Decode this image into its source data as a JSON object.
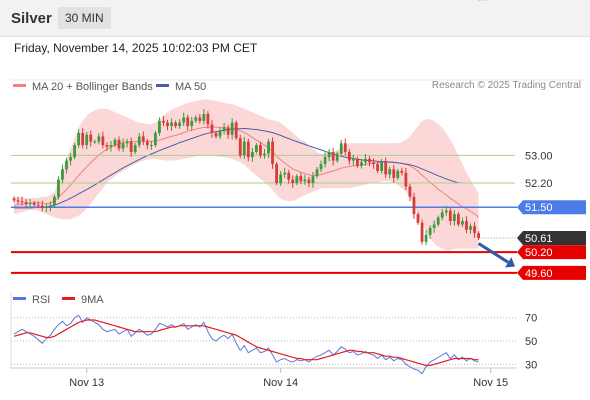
{
  "header": {
    "title": "Silver",
    "timeframe": "30 MIN"
  },
  "datetime": "Friday, November 14, 2025 10:02:03 PM CET",
  "copyright": "Research © 2025 Trading Central",
  "colors": {
    "up": "#3d9a3d",
    "down": "#d93a3a",
    "bollinger_fill": "#f9c9c9",
    "ma20": "#f08080",
    "ma50": "#4a5fa8",
    "support": "#e60000",
    "pivot": "#4d7be8",
    "resistance": "#a8d08d",
    "last_price": "#333333",
    "rsi": "#5a78d6",
    "rsi_ma": "#e02020",
    "forecast_arrow": "#2f5aa8"
  },
  "chart_data": [
    {
      "type": "candlestick",
      "legend": [
        {
          "name": "MA 20 + Bollinger Bands",
          "color": "#f08080"
        },
        {
          "name": "MA 50",
          "color": "#4a5fa8"
        }
      ],
      "ylim": [
        49.45,
        54.75
      ],
      "x_ticks": [
        {
          "label": "Nov 13",
          "bar": 18
        },
        {
          "label": "Nov 14",
          "bar": 66
        },
        {
          "label": "Nov 15",
          "bar": 118
        }
      ],
      "levels": [
        {
          "label": "53.00",
          "value": 53.0,
          "kind": "resistance"
        },
        {
          "label": "52.20",
          "value": 52.2,
          "kind": "resistance"
        },
        {
          "label": "51.50",
          "value": 51.5,
          "kind": "pivot"
        },
        {
          "label": "50.61",
          "value": 50.61,
          "kind": "last"
        },
        {
          "label": "50.20",
          "value": 50.2,
          "kind": "support"
        },
        {
          "label": "49.60",
          "value": 49.6,
          "kind": "support"
        }
      ],
      "close": [
        51.7,
        51.67,
        51.65,
        51.6,
        51.62,
        51.57,
        51.55,
        51.48,
        51.52,
        51.55,
        51.8,
        52.3,
        52.6,
        52.85,
        52.95,
        53.3,
        53.65,
        53.3,
        53.6,
        53.4,
        53.4,
        53.55,
        53.3,
        53.25,
        53.3,
        53.45,
        53.2,
        53.35,
        53.4,
        53.1,
        53.3,
        53.55,
        53.4,
        53.3,
        53.3,
        53.65,
        54.0,
        53.95,
        53.85,
        53.95,
        53.85,
        53.95,
        54.1,
        53.85,
        54.0,
        54.1,
        54.0,
        54.2,
        53.9,
        53.65,
        53.55,
        53.7,
        53.8,
        53.6,
        53.95,
        53.5,
        53.0,
        53.4,
        52.95,
        53.1,
        53.3,
        53.0,
        53.05,
        53.4,
        52.75,
        52.2,
        52.45,
        52.5,
        52.3,
        52.2,
        52.4,
        52.25,
        52.3,
        52.2,
        52.4,
        52.6,
        52.75,
        52.95,
        53.1,
        52.85,
        53.05,
        53.35,
        53.1,
        52.85,
        52.9,
        52.7,
        52.8,
        52.9,
        52.8,
        52.75,
        52.55,
        52.8,
        52.45,
        52.6,
        52.35,
        52.55,
        52.5,
        52.1,
        51.8,
        51.3,
        51.05,
        50.5,
        50.7,
        50.9,
        51.0,
        51.2,
        51.35,
        51.4,
        51.1,
        51.3,
        51.0,
        51.1,
        50.85,
        50.95,
        50.75,
        50.61
      ],
      "ma20": [
        51.55,
        51.57,
        51.59,
        51.6,
        51.62,
        51.63,
        51.63,
        51.62,
        51.6,
        51.62,
        51.68,
        51.78,
        51.9,
        52.02,
        52.14,
        52.28,
        52.42,
        52.55,
        52.67,
        52.79,
        52.9,
        53.01,
        53.1,
        53.18,
        53.24,
        53.29,
        53.33,
        53.37,
        53.4,
        53.4,
        53.4,
        53.41,
        53.41,
        53.41,
        53.41,
        53.42,
        53.44,
        53.48,
        53.52,
        53.55,
        53.58,
        53.62,
        53.66,
        53.7,
        53.73,
        53.76,
        53.79,
        53.81,
        53.82,
        53.82,
        53.82,
        53.81,
        53.81,
        53.8,
        53.79,
        53.76,
        53.71,
        53.67,
        53.6,
        53.52,
        53.44,
        53.37,
        53.3,
        53.22,
        53.12,
        52.98,
        52.87,
        52.78,
        52.69,
        52.61,
        52.56,
        52.51,
        52.48,
        52.44,
        52.42,
        52.43,
        52.45,
        52.48,
        52.52,
        52.55,
        52.59,
        52.63,
        52.66,
        52.68,
        52.7,
        52.71,
        52.72,
        52.74,
        52.76,
        52.78,
        52.79,
        52.8,
        52.8,
        52.8,
        52.79,
        52.79,
        52.77,
        52.74,
        52.7,
        52.63,
        52.54,
        52.43,
        52.33,
        52.22,
        52.12,
        52.02,
        51.94,
        51.85,
        51.76,
        51.68,
        51.6,
        51.52,
        51.45,
        51.38,
        51.31,
        51.2
      ],
      "bb_upper": [
        51.8,
        51.8,
        51.78,
        51.76,
        51.76,
        51.76,
        51.77,
        51.8,
        51.8,
        51.85,
        51.95,
        52.2,
        52.55,
        52.9,
        53.2,
        53.5,
        53.8,
        54.0,
        54.15,
        54.25,
        54.3,
        54.35,
        54.35,
        54.35,
        54.3,
        54.25,
        54.2,
        54.15,
        54.1,
        54.05,
        54.0,
        53.95,
        53.93,
        53.9,
        53.9,
        53.95,
        54.05,
        54.15,
        54.25,
        54.32,
        54.38,
        54.42,
        54.48,
        54.52,
        54.55,
        54.58,
        54.6,
        54.62,
        54.62,
        54.6,
        54.58,
        54.55,
        54.52,
        54.5,
        54.48,
        54.45,
        54.4,
        54.35,
        54.3,
        54.25,
        54.2,
        54.15,
        54.1,
        54.05,
        54.02,
        54.0,
        53.95,
        53.85,
        53.75,
        53.65,
        53.55,
        53.45,
        53.4,
        53.3,
        53.2,
        53.1,
        53.05,
        53.05,
        53.08,
        53.1,
        53.15,
        53.25,
        53.3,
        53.35,
        53.35,
        53.35,
        53.35,
        53.35,
        53.35,
        53.35,
        53.35,
        53.35,
        53.35,
        53.35,
        53.35,
        53.35,
        53.4,
        53.45,
        53.55,
        53.7,
        53.85,
        54.0,
        54.05,
        54.05,
        54.0,
        53.9,
        53.8,
        53.65,
        53.45,
        53.25,
        53.0,
        52.75,
        52.5,
        52.3,
        52.1,
        51.9
      ],
      "bb_lower": [
        51.3,
        51.32,
        51.36,
        51.4,
        51.42,
        51.42,
        51.4,
        51.36,
        51.3,
        51.25,
        51.2,
        51.18,
        51.15,
        51.15,
        51.16,
        51.2,
        51.25,
        51.35,
        51.45,
        51.6,
        51.75,
        51.9,
        52.05,
        52.2,
        52.3,
        52.4,
        52.48,
        52.55,
        52.62,
        52.7,
        52.75,
        52.8,
        52.85,
        52.88,
        52.9,
        52.9,
        52.88,
        52.86,
        52.85,
        52.85,
        52.86,
        52.88,
        52.9,
        52.92,
        52.95,
        52.97,
        53.0,
        53.0,
        53.0,
        53.0,
        52.98,
        52.96,
        52.95,
        52.93,
        52.9,
        52.85,
        52.8,
        52.72,
        52.62,
        52.52,
        52.42,
        52.32,
        52.22,
        52.12,
        52.0,
        51.85,
        51.75,
        51.7,
        51.68,
        51.68,
        51.72,
        51.8,
        51.85,
        51.9,
        51.95,
        52.0,
        52.05,
        52.05,
        52.05,
        52.05,
        52.05,
        52.05,
        52.05,
        52.05,
        52.08,
        52.1,
        52.12,
        52.15,
        52.18,
        52.2,
        52.22,
        52.25,
        52.25,
        52.25,
        52.2,
        52.15,
        52.05,
        51.95,
        51.8,
        51.55,
        51.3,
        51.0,
        50.8,
        50.6,
        50.45,
        50.35,
        50.3,
        50.25,
        50.25,
        50.3,
        50.3,
        50.3,
        50.3,
        50.3,
        50.3,
        50.3
      ],
      "ma50": [
        51.48,
        51.48,
        51.48,
        51.48,
        51.48,
        51.49,
        51.5,
        51.5,
        51.51,
        51.53,
        51.56,
        51.6,
        51.65,
        51.7,
        51.76,
        51.82,
        51.89,
        51.95,
        52.01,
        52.08,
        52.15,
        52.22,
        52.29,
        52.36,
        52.43,
        52.5,
        52.57,
        52.64,
        52.7,
        52.76,
        52.82,
        52.88,
        52.94,
        52.99,
        53.04,
        53.09,
        53.14,
        53.19,
        53.23,
        53.28,
        53.32,
        53.37,
        53.41,
        53.45,
        53.49,
        53.53,
        53.57,
        53.61,
        53.64,
        53.67,
        53.69,
        53.71,
        53.73,
        53.75,
        53.76,
        53.77,
        53.77,
        53.78,
        53.77,
        53.76,
        53.75,
        53.73,
        53.71,
        53.69,
        53.66,
        53.62,
        53.58,
        53.53,
        53.49,
        53.44,
        53.4,
        53.36,
        53.32,
        53.28,
        53.24,
        53.2,
        53.16,
        53.12,
        53.08,
        53.04,
        53.01,
        52.98,
        52.95,
        52.93,
        52.91,
        52.89,
        52.87,
        52.86,
        52.85,
        52.84,
        52.83,
        52.82,
        52.82,
        52.81,
        52.8,
        52.79,
        52.77,
        52.75,
        52.73,
        52.7,
        52.66,
        52.61,
        52.56,
        52.51,
        52.46,
        52.41,
        52.37,
        52.32,
        52.28,
        52.24,
        52.21,
        52.2
      ],
      "annotations": [
        {
          "type": "forecast-arrow",
          "from_bar": 115,
          "from_value": 50.45,
          "to_bar": 124,
          "to_value": 49.78
        }
      ]
    },
    {
      "type": "line",
      "legend": [
        {
          "name": "RSI",
          "color": "#5a78d6"
        },
        {
          "name": "9MA",
          "color": "#e02020"
        }
      ],
      "ylim": [
        20,
        80
      ],
      "y_ticks": [
        70,
        50,
        30
      ],
      "rsi": [
        56,
        58,
        60,
        58,
        56,
        54,
        51,
        48,
        52,
        55,
        60,
        64,
        67,
        63,
        65,
        70,
        72,
        66,
        70,
        68,
        66,
        64,
        60,
        58,
        59,
        60,
        56,
        58,
        60,
        54,
        57,
        60,
        58,
        55,
        56,
        60,
        65,
        64,
        62,
        64,
        62,
        63,
        65,
        60,
        62,
        64,
        62,
        66,
        58,
        52,
        50,
        53,
        55,
        52,
        56,
        48,
        42,
        46,
        40,
        42,
        44,
        40,
        41,
        44,
        38,
        32,
        34,
        35,
        33,
        32,
        34,
        33,
        34,
        32,
        35,
        37,
        38,
        40,
        42,
        38,
        41,
        45,
        43,
        40,
        41,
        38,
        39,
        41,
        39,
        38,
        35,
        38,
        34,
        36,
        33,
        35,
        34,
        30,
        28,
        26,
        25,
        22,
        28,
        32,
        34,
        36,
        38,
        40,
        35,
        38,
        34,
        36,
        33,
        35,
        33,
        32
      ],
      "ma9": [
        54,
        55,
        56,
        57,
        57,
        56,
        55,
        54,
        53,
        53,
        54,
        56,
        58,
        60,
        62,
        64,
        66,
        67,
        68,
        68,
        68,
        67,
        66,
        65,
        64,
        63,
        62,
        61,
        60,
        59,
        58,
        58,
        58,
        58,
        58,
        58,
        59,
        60,
        61,
        62,
        62,
        63,
        63,
        63,
        63,
        63,
        63,
        63,
        62,
        61,
        60,
        59,
        58,
        57,
        56,
        55,
        53,
        51,
        49,
        47,
        45,
        44,
        43,
        42,
        41,
        40,
        39,
        38,
        37,
        36,
        35,
        35,
        34,
        34,
        34,
        34,
        35,
        36,
        37,
        38,
        39,
        40,
        41,
        42,
        42,
        41,
        41,
        40,
        40,
        40,
        39,
        38,
        37,
        37,
        36,
        36,
        35,
        34,
        33,
        32,
        31,
        30,
        29,
        29,
        30,
        31,
        32,
        33,
        34,
        35,
        35,
        35,
        35,
        35,
        34,
        34
      ]
    }
  ]
}
